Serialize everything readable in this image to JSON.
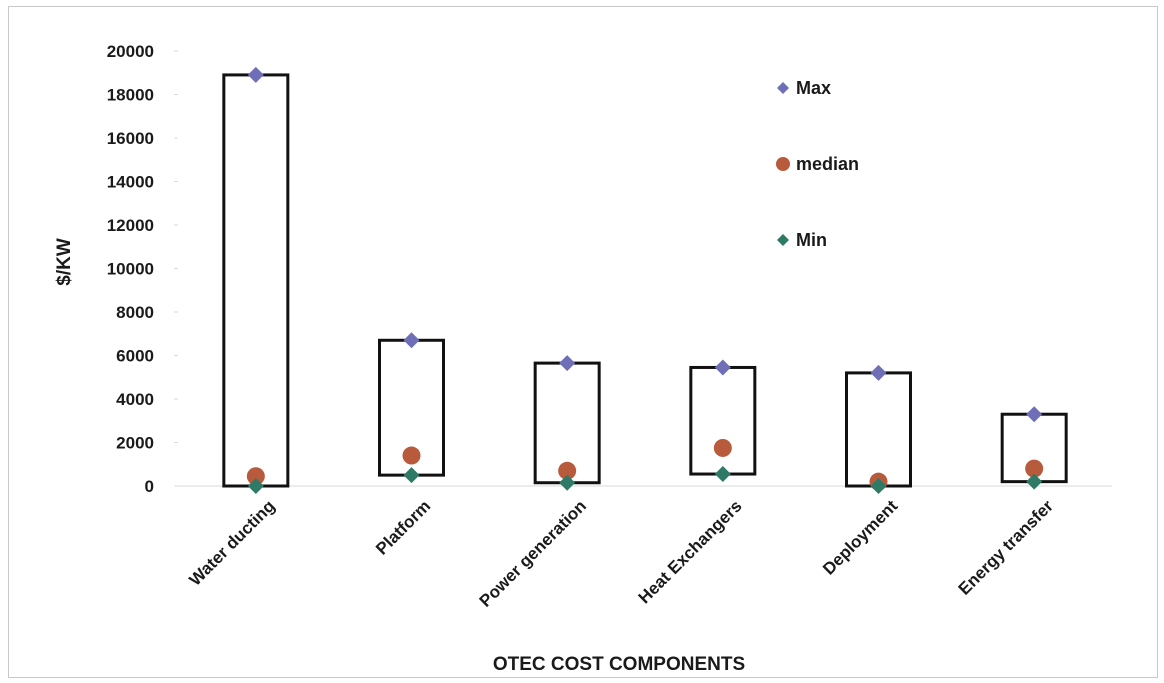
{
  "chart_data": {
    "type": "scatter",
    "title": "",
    "xlabel": "OTEC COST COMPONENTS",
    "ylabel": "$/KW",
    "ylim": [
      0,
      20000
    ],
    "yticks": [
      0,
      2000,
      4000,
      6000,
      8000,
      10000,
      12000,
      14000,
      16000,
      18000,
      20000
    ],
    "categories": [
      "Water ducting",
      "Platform",
      "Power generation",
      "Heat Exchangers",
      "Deployment",
      "Energy transfer"
    ],
    "series": [
      {
        "name": "Max",
        "marker": "diamond",
        "color": "#6f6fb8",
        "values": [
          18900,
          6700,
          5650,
          5450,
          5200,
          3300
        ]
      },
      {
        "name": "median",
        "marker": "circle",
        "color": "#b85a3c",
        "values": [
          450,
          1400,
          700,
          1750,
          200,
          800
        ]
      },
      {
        "name": "Min",
        "marker": "diamond",
        "color": "#2f7a66",
        "values": [
          0,
          500,
          150,
          550,
          0,
          200
        ]
      }
    ],
    "range_boxes": true,
    "legend_position": "top-right",
    "grid": false
  }
}
